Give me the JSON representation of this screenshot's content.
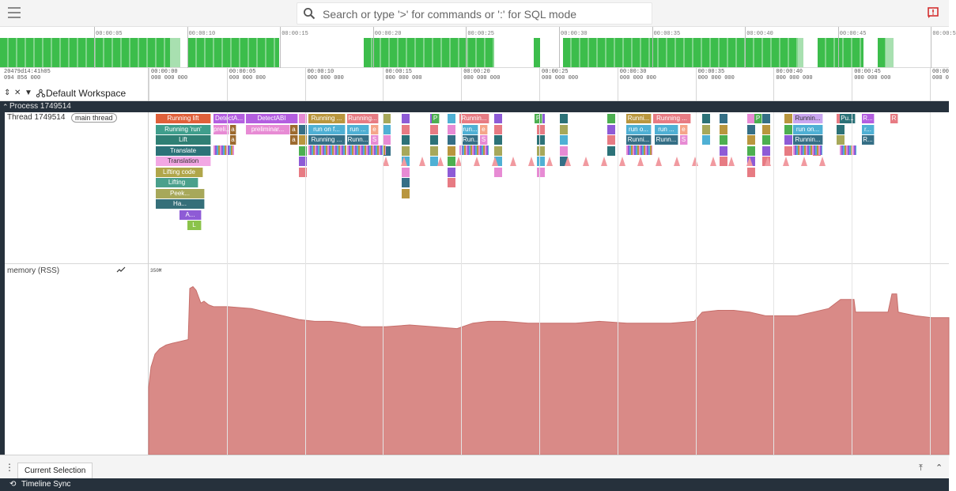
{
  "search": {
    "placeholder": "Search or type '>' for commands or ':' for SQL mode"
  },
  "overview": {
    "tick_labels": [
      "00:00:05",
      "00:00:10",
      "00:00:15",
      "00:00:20",
      "00:00:25",
      "00:00:30",
      "00:00:35",
      "00:00:40",
      "00:00:45",
      "00:00:5"
    ]
  },
  "timestamps": {
    "root_line1": "20479d14:41h05",
    "root_line2": "094 856 000",
    "cols": [
      {
        "t": "00:00:00",
        "n": "000 000 000"
      },
      {
        "t": "00:00:05",
        "n": "000 000 000"
      },
      {
        "t": "00:00:10",
        "n": "000 000 000"
      },
      {
        "t": "00:00:15",
        "n": "000 000 000"
      },
      {
        "t": "00:00:20",
        "n": "000 000 000"
      },
      {
        "t": "00:00:25",
        "n": "000 000 000"
      },
      {
        "t": "00:00:30",
        "n": "000 000 000"
      },
      {
        "t": "00:00:35",
        "n": "000 000 000"
      },
      {
        "t": "00:00:40",
        "n": "000 000 000"
      },
      {
        "t": "00:00:45",
        "n": "000 000 000"
      },
      {
        "t": "00:00",
        "n": "000 0"
      }
    ]
  },
  "workspace": {
    "label": "Default Workspace"
  },
  "process": {
    "label": "Process 1749514"
  },
  "thread": {
    "name": "Thread 1749514",
    "chip": "main thread"
  },
  "memory": {
    "name": "memory (RSS)",
    "scale_label": "350M"
  },
  "slices": [
    {
      "text": "Running lift",
      "color": "#e0603a"
    },
    {
      "text": "Running 'run'",
      "color": "#3f9e8c"
    },
    {
      "text": "Lift",
      "color": "#2f7f74"
    },
    {
      "text": "Translate",
      "color": "#2c7278"
    },
    {
      "text": "Translation",
      "color": "#f2a7e4",
      "dark": true
    },
    {
      "text": "Lifting code",
      "color": "#b0a64a"
    },
    {
      "text": "Lifting",
      "color": "#4aa08c"
    },
    {
      "text": "Peek...",
      "color": "#a7a85a"
    },
    {
      "text": "Ha...",
      "color": "#356f79"
    },
    {
      "text": "A...",
      "color": "#8e5bd6"
    },
    {
      "text": "L",
      "color": "#8bc34a"
    },
    {
      "text": "DetectA...",
      "color": "#b35ee0"
    },
    {
      "text": "preli...",
      "color": "#e78bd4"
    },
    {
      "text": "a",
      "color": "#9c6a2e"
    },
    {
      "text": "DetectABI",
      "color": "#b35ee0"
    },
    {
      "text": "preliminar...",
      "color": "#e78bd4"
    },
    {
      "text": "a",
      "color": "#9c6a2e"
    },
    {
      "text": "a",
      "color": "#9c6a2e"
    },
    {
      "text": "a",
      "color": "#9c6a2e"
    },
    {
      "text": "Running ...",
      "color": "#b9963e"
    },
    {
      "text": "run on f...",
      "color": "#4fb0d4"
    },
    {
      "text": "Running ...",
      "color": "#356f86"
    },
    {
      "text": "Running...",
      "color": "#e77b83"
    },
    {
      "text": "run ...",
      "color": "#4fb0d4"
    },
    {
      "text": "e",
      "color": "#f5a58a"
    },
    {
      "text": "Runn...",
      "color": "#356f86"
    },
    {
      "text": "S",
      "color": "#e78bd4"
    },
    {
      "text": "P",
      "color": "#4caf50"
    },
    {
      "text": "Runnin...",
      "color": "#e77b83"
    },
    {
      "text": "run...",
      "color": "#4fb0d4"
    },
    {
      "text": "e",
      "color": "#f5a58a"
    },
    {
      "text": "Run...",
      "color": "#356f86"
    },
    {
      "text": "S",
      "color": "#e78bd4"
    },
    {
      "text": "P",
      "color": "#4caf50"
    },
    {
      "text": "Runni...",
      "color": "#b9963e"
    },
    {
      "text": "Running ...",
      "color": "#e77b83"
    },
    {
      "text": "run o...",
      "color": "#4fb0d4"
    },
    {
      "text": "run ...",
      "color": "#4fb0d4"
    },
    {
      "text": "e",
      "color": "#f5a58a"
    },
    {
      "text": "Runni...",
      "color": "#356f86"
    },
    {
      "text": "Runn...",
      "color": "#356f86"
    },
    {
      "text": "S",
      "color": "#e78bd4"
    },
    {
      "text": "P",
      "color": "#4caf50"
    },
    {
      "text": "Runnin...",
      "color": "#c9a6f0",
      "dark": true
    },
    {
      "text": "run on...",
      "color": "#4fb0d4"
    },
    {
      "text": "Runnin...",
      "color": "#356f86"
    },
    {
      "text": "Pu...",
      "color": "#2c7278"
    },
    {
      "text": "R...",
      "color": "#b35ee0"
    },
    {
      "text": "r...",
      "color": "#4fb0d4"
    },
    {
      "text": "R...",
      "color": "#356f86"
    },
    {
      "text": "R",
      "color": "#e77b83"
    }
  ],
  "bottom": {
    "tab_label": "Current Selection"
  },
  "status": {
    "label": "Timeline Sync"
  },
  "colors": {
    "overview_green": "#3cbd4b",
    "memory_fill": "#d98a87",
    "memory_stroke": "#c66f6b",
    "chrome_dark": "#26313c"
  }
}
